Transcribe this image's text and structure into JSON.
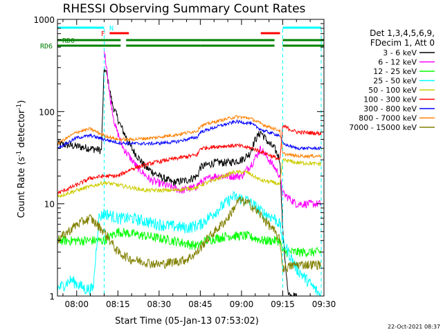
{
  "chart_data": {
    "type": "line",
    "title": "RHESSI Observing Summary Count Rates",
    "xlabel": "Start Time (05-Jan-13 07:53:02)",
    "ylabel_main": "Count Rate (s",
    "ylabel_sup1": "-1",
    "ylabel_mid": " detector",
    "ylabel_sup2": "-1",
    "ylabel_end": ")",
    "yscale": "log",
    "xlim": [
      -7,
      90
    ],
    "ylim": [
      1,
      1000
    ],
    "x_ticks": [
      {
        "v": 0,
        "label": "08:00"
      },
      {
        "v": 15,
        "label": "08:15"
      },
      {
        "v": 30,
        "label": "08:30"
      },
      {
        "v": 45,
        "label": "08:45"
      },
      {
        "v": 60,
        "label": "09:00"
      },
      {
        "v": 75,
        "label": "09:15"
      },
      {
        "v": 90,
        "label": "09:30"
      }
    ],
    "y_ticks": [
      {
        "v": 1,
        "label": "1"
      },
      {
        "v": 10,
        "label": "10"
      },
      {
        "v": 100,
        "label": "100"
      },
      {
        "v": 1000,
        "label": "1000"
      }
    ],
    "legend_header": [
      "Det 1,3,4,5,6,9,",
      "FDecim 1, Att 0"
    ],
    "timestamp": "22-Oct-2021 08:37",
    "flags": [
      {
        "label": "N",
        "color": "#00ffff",
        "segments": [
          [
            -7,
            10
          ],
          [
            75,
            89
          ]
        ]
      },
      {
        "label": "F",
        "color": "#ff0000",
        "segments": [
          [
            12,
            19
          ],
          [
            67,
            74
          ]
        ]
      },
      {
        "label": "RD0",
        "color": "#008000",
        "segments": [
          [
            -7,
            16
          ],
          [
            18,
            45
          ],
          [
            45,
            72
          ],
          [
            75,
            90
          ]
        ]
      },
      {
        "label": "RD6",
        "color": "#008000",
        "segments": [
          [
            -7,
            16
          ],
          [
            18,
            45
          ],
          [
            45,
            72
          ],
          [
            75,
            90
          ]
        ]
      }
    ],
    "cyan_vlines": [
      10,
      75,
      89
    ],
    "series": [
      {
        "name": "3 - 6 keV",
        "color": "#000000",
        "noise": 0.1,
        "points": [
          [
            -7,
            45
          ],
          [
            5,
            40
          ],
          [
            9,
            38
          ],
          [
            10,
            300
          ],
          [
            11,
            250
          ],
          [
            13,
            120
          ],
          [
            16,
            70
          ],
          [
            20,
            40
          ],
          [
            25,
            25
          ],
          [
            30,
            20
          ],
          [
            35,
            17
          ],
          [
            40,
            18
          ],
          [
            44,
            20
          ],
          [
            45,
            25
          ],
          [
            50,
            28
          ],
          [
            55,
            28
          ],
          [
            60,
            30
          ],
          [
            63,
            35
          ],
          [
            65,
            50
          ],
          [
            67,
            60
          ],
          [
            70,
            45
          ],
          [
            72,
            40
          ],
          [
            74,
            30
          ],
          [
            75,
            5
          ],
          [
            77,
            1
          ],
          [
            80,
            1
          ]
        ]
      },
      {
        "name": "6 - 12 keV",
        "color": "#ff00ff",
        "noise": 0.1,
        "points": [
          [
            10,
            450
          ],
          [
            11,
            300
          ],
          [
            12,
            150
          ],
          [
            14,
            70
          ],
          [
            17,
            40
          ],
          [
            22,
            25
          ],
          [
            27,
            18
          ],
          [
            32,
            16
          ],
          [
            38,
            14
          ],
          [
            43,
            15
          ],
          [
            45,
            17
          ],
          [
            50,
            20
          ],
          [
            55,
            20
          ],
          [
            60,
            20
          ],
          [
            64,
            28
          ],
          [
            67,
            40
          ],
          [
            70,
            30
          ],
          [
            72,
            25
          ],
          [
            74,
            20
          ],
          [
            75,
            13
          ],
          [
            80,
            10
          ],
          [
            89,
            10
          ]
        ]
      },
      {
        "name": "12 - 25 keV",
        "color": "#00ff00",
        "noise": 0.12,
        "points": [
          [
            -7,
            4
          ],
          [
            5,
            4
          ],
          [
            10,
            4
          ],
          [
            15,
            5
          ],
          [
            25,
            4.5
          ],
          [
            35,
            4
          ],
          [
            44,
            3.5
          ],
          [
            47,
            4
          ],
          [
            55,
            4.5
          ],
          [
            62,
            4.5
          ],
          [
            68,
            4
          ],
          [
            74,
            4
          ],
          [
            75,
            3
          ],
          [
            80,
            3
          ],
          [
            89,
            3
          ]
        ]
      },
      {
        "name": "25 - 50 keV",
        "color": "#00ffff",
        "noise": 0.15,
        "points": [
          [
            -7,
            1.2
          ],
          [
            -2,
            1.5
          ],
          [
            3,
            1.2
          ],
          [
            6,
            1.2
          ],
          [
            8,
            7
          ],
          [
            10,
            8
          ],
          [
            15,
            7
          ],
          [
            20,
            7
          ],
          [
            30,
            6
          ],
          [
            40,
            5.5
          ],
          [
            45,
            6
          ],
          [
            50,
            8
          ],
          [
            57,
            12
          ],
          [
            62,
            11
          ],
          [
            68,
            8
          ],
          [
            72,
            7
          ],
          [
            74,
            6
          ],
          [
            75,
            4
          ],
          [
            80,
            2
          ],
          [
            89,
            1
          ]
        ]
      },
      {
        "name": "50 - 100 keV",
        "color": "#cccc00",
        "noise": 0.05,
        "points": [
          [
            -7,
            12
          ],
          [
            0,
            14
          ],
          [
            7,
            16
          ],
          [
            10,
            17
          ],
          [
            15,
            16
          ],
          [
            25,
            14
          ],
          [
            35,
            14
          ],
          [
            44,
            15
          ],
          [
            45,
            16
          ],
          [
            50,
            18
          ],
          [
            57,
            22
          ],
          [
            62,
            22
          ],
          [
            67,
            18
          ],
          [
            72,
            17
          ],
          [
            74,
            16
          ],
          [
            75,
            30
          ],
          [
            80,
            28
          ],
          [
            89,
            27
          ]
        ]
      },
      {
        "name": "100 - 300 keV",
        "color": "#ff0000",
        "noise": 0.05,
        "points": [
          [
            -7,
            13
          ],
          [
            0,
            16
          ],
          [
            5,
            19
          ],
          [
            10,
            20
          ],
          [
            15,
            20
          ],
          [
            20,
            24
          ],
          [
            28,
            28
          ],
          [
            36,
            31
          ],
          [
            44,
            34
          ],
          [
            45,
            40
          ],
          [
            52,
            42
          ],
          [
            58,
            43
          ],
          [
            64,
            40
          ],
          [
            70,
            34
          ],
          [
            74,
            30
          ],
          [
            75,
            70
          ],
          [
            80,
            60
          ],
          [
            89,
            58
          ]
        ]
      },
      {
        "name": "300 - 800 keV",
        "color": "#0000ff",
        "noise": 0.04,
        "points": [
          [
            -7,
            40
          ],
          [
            0,
            52
          ],
          [
            5,
            55
          ],
          [
            10,
            50
          ],
          [
            15,
            46
          ],
          [
            20,
            45
          ],
          [
            28,
            45
          ],
          [
            36,
            47
          ],
          [
            44,
            53
          ],
          [
            45,
            60
          ],
          [
            52,
            70
          ],
          [
            58,
            78
          ],
          [
            63,
            75
          ],
          [
            68,
            62
          ],
          [
            74,
            55
          ],
          [
            75,
            45
          ],
          [
            80,
            40
          ],
          [
            89,
            40
          ]
        ]
      },
      {
        "name": "800 - 7000 keV",
        "color": "#ff8000",
        "noise": 0.04,
        "points": [
          [
            -7,
            45
          ],
          [
            0,
            60
          ],
          [
            5,
            65
          ],
          [
            10,
            55
          ],
          [
            15,
            50
          ],
          [
            20,
            50
          ],
          [
            28,
            52
          ],
          [
            36,
            56
          ],
          [
            44,
            62
          ],
          [
            45,
            70
          ],
          [
            52,
            80
          ],
          [
            58,
            88
          ],
          [
            63,
            85
          ],
          [
            68,
            72
          ],
          [
            74,
            62
          ],
          [
            75,
            35
          ],
          [
            80,
            33
          ],
          [
            89,
            33
          ]
        ]
      },
      {
        "name": "7000 - 15000 keV",
        "color": "#808000",
        "noise": 0.12,
        "points": [
          [
            -7,
            4
          ],
          [
            0,
            6
          ],
          [
            5,
            7
          ],
          [
            10,
            5
          ],
          [
            15,
            3
          ],
          [
            20,
            2.5
          ],
          [
            30,
            2.2
          ],
          [
            40,
            2.5
          ],
          [
            44,
            3
          ],
          [
            47,
            4
          ],
          [
            55,
            7
          ],
          [
            59,
            11
          ],
          [
            63,
            10
          ],
          [
            68,
            7
          ],
          [
            72,
            5
          ],
          [
            74,
            4
          ],
          [
            75,
            2
          ],
          [
            80,
            2.2
          ],
          [
            89,
            2.2
          ]
        ]
      }
    ]
  }
}
